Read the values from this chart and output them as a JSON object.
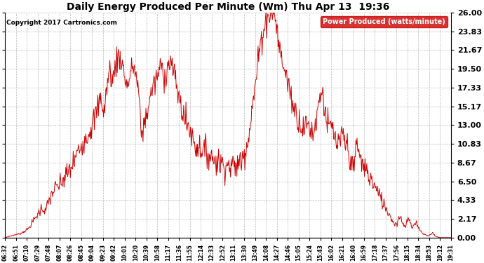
{
  "title": "Daily Energy Produced Per Minute (Wm) Thu Apr 13  19:36",
  "copyright": "Copyright 2017 Cartronics.com",
  "legend_label": "Power Produced (watts/minute)",
  "legend_bg": "#cc0000",
  "legend_fg": "#ffffff",
  "line_color": "#cc0000",
  "bg_color": "#ffffff",
  "grid_color": "#bbbbbb",
  "ylim": [
    0.0,
    26.0
  ],
  "yticks": [
    0.0,
    2.17,
    4.33,
    6.5,
    8.67,
    10.83,
    13.0,
    15.17,
    17.33,
    19.5,
    21.67,
    23.83,
    26.0
  ],
  "xtick_labels": [
    "06:32",
    "06:51",
    "07:10",
    "07:29",
    "07:48",
    "08:07",
    "08:26",
    "08:45",
    "09:04",
    "09:23",
    "09:42",
    "10:01",
    "10:20",
    "10:39",
    "10:58",
    "11:17",
    "11:36",
    "11:55",
    "12:14",
    "12:33",
    "12:52",
    "13:11",
    "13:30",
    "13:49",
    "14:08",
    "14:27",
    "14:46",
    "15:05",
    "15:24",
    "15:43",
    "16:02",
    "16:21",
    "16:40",
    "16:59",
    "17:18",
    "17:37",
    "17:56",
    "18:15",
    "18:34",
    "18:53",
    "19:12",
    "19:31"
  ]
}
